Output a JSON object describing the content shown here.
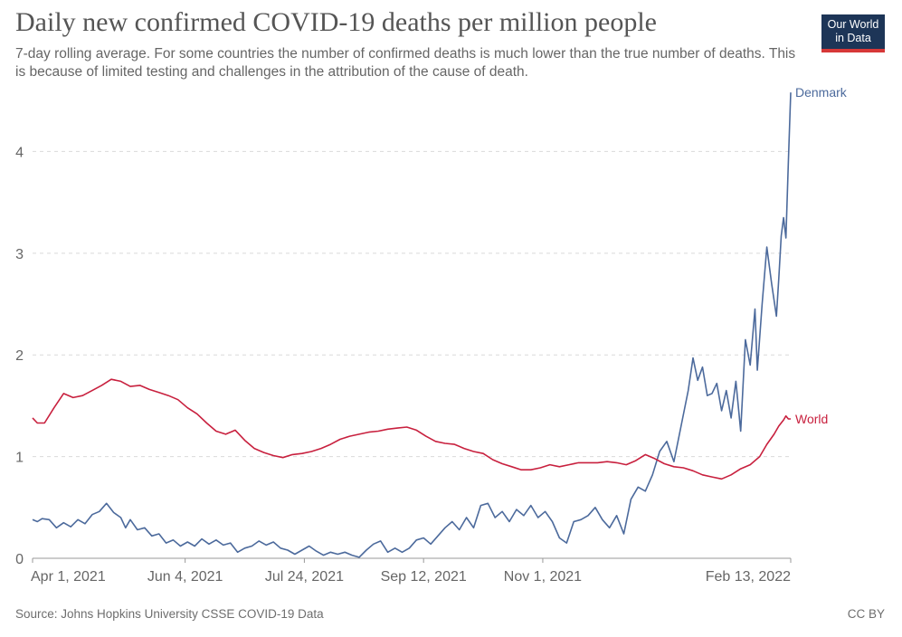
{
  "header": {
    "title": "Daily new confirmed COVID-19 deaths per million people",
    "subtitle": "7-day rolling average. For some countries the number of confirmed deaths is much lower than the true number of deaths. This is because of limited testing and challenges in the attribution of the cause of death.",
    "logo_line1": "Our World",
    "logo_line2": "in Data",
    "logo_bg": "#1d3557",
    "logo_accent": "#d73838"
  },
  "footer": {
    "source": "Source: Johns Hopkins University CSSE COVID-19 Data",
    "license": "CC BY"
  },
  "chart_data": {
    "type": "line",
    "title": "Daily new confirmed COVID-19 deaths per million people",
    "xlabel": "",
    "ylabel": "",
    "x_range": [
      "2021-04-01",
      "2022-02-13"
    ],
    "ylim": [
      0,
      4.6
    ],
    "y_ticks": [
      0,
      1,
      2,
      3,
      4
    ],
    "x_ticks": [
      {
        "date": "2021-04-01",
        "label": "Apr 1, 2021"
      },
      {
        "date": "2021-06-04",
        "label": "Jun 4, 2021"
      },
      {
        "date": "2021-07-24",
        "label": "Jul 24, 2021"
      },
      {
        "date": "2021-09-12",
        "label": "Sep 12, 2021"
      },
      {
        "date": "2021-11-01",
        "label": "Nov 1, 2021"
      },
      {
        "date": "2022-02-13",
        "label": "Feb 13, 2022"
      }
    ],
    "grid": "horizontal-dashed",
    "series": [
      {
        "name": "Denmark",
        "color": "#4c6a9c",
        "points": [
          [
            "2021-04-01",
            0.38
          ],
          [
            "2021-04-03",
            0.36
          ],
          [
            "2021-04-05",
            0.39
          ],
          [
            "2021-04-08",
            0.38
          ],
          [
            "2021-04-11",
            0.3
          ],
          [
            "2021-04-14",
            0.35
          ],
          [
            "2021-04-17",
            0.31
          ],
          [
            "2021-04-20",
            0.38
          ],
          [
            "2021-04-23",
            0.34
          ],
          [
            "2021-04-26",
            0.43
          ],
          [
            "2021-04-29",
            0.46
          ],
          [
            "2021-05-02",
            0.54
          ],
          [
            "2021-05-05",
            0.45
          ],
          [
            "2021-05-08",
            0.4
          ],
          [
            "2021-05-10",
            0.3
          ],
          [
            "2021-05-12",
            0.38
          ],
          [
            "2021-05-15",
            0.28
          ],
          [
            "2021-05-18",
            0.3
          ],
          [
            "2021-05-21",
            0.22
          ],
          [
            "2021-05-24",
            0.24
          ],
          [
            "2021-05-27",
            0.15
          ],
          [
            "2021-05-30",
            0.18
          ],
          [
            "2021-06-02",
            0.12
          ],
          [
            "2021-06-05",
            0.16
          ],
          [
            "2021-06-08",
            0.12
          ],
          [
            "2021-06-11",
            0.19
          ],
          [
            "2021-06-14",
            0.14
          ],
          [
            "2021-06-17",
            0.18
          ],
          [
            "2021-06-20",
            0.13
          ],
          [
            "2021-06-23",
            0.15
          ],
          [
            "2021-06-26",
            0.06
          ],
          [
            "2021-06-29",
            0.1
          ],
          [
            "2021-07-02",
            0.12
          ],
          [
            "2021-07-05",
            0.17
          ],
          [
            "2021-07-08",
            0.13
          ],
          [
            "2021-07-11",
            0.16
          ],
          [
            "2021-07-14",
            0.1
          ],
          [
            "2021-07-17",
            0.08
          ],
          [
            "2021-07-20",
            0.04
          ],
          [
            "2021-07-23",
            0.08
          ],
          [
            "2021-07-26",
            0.12
          ],
          [
            "2021-07-29",
            0.07
          ],
          [
            "2021-08-01",
            0.03
          ],
          [
            "2021-08-04",
            0.06
          ],
          [
            "2021-08-07",
            0.04
          ],
          [
            "2021-08-10",
            0.06
          ],
          [
            "2021-08-13",
            0.03
          ],
          [
            "2021-08-16",
            0.01
          ],
          [
            "2021-08-19",
            0.08
          ],
          [
            "2021-08-22",
            0.14
          ],
          [
            "2021-08-25",
            0.17
          ],
          [
            "2021-08-28",
            0.06
          ],
          [
            "2021-08-31",
            0.1
          ],
          [
            "2021-09-03",
            0.06
          ],
          [
            "2021-09-06",
            0.1
          ],
          [
            "2021-09-09",
            0.18
          ],
          [
            "2021-09-12",
            0.2
          ],
          [
            "2021-09-15",
            0.14
          ],
          [
            "2021-09-18",
            0.22
          ],
          [
            "2021-09-21",
            0.3
          ],
          [
            "2021-09-24",
            0.36
          ],
          [
            "2021-09-27",
            0.28
          ],
          [
            "2021-09-30",
            0.4
          ],
          [
            "2021-10-03",
            0.3
          ],
          [
            "2021-10-06",
            0.52
          ],
          [
            "2021-10-09",
            0.54
          ],
          [
            "2021-10-12",
            0.4
          ],
          [
            "2021-10-15",
            0.46
          ],
          [
            "2021-10-18",
            0.36
          ],
          [
            "2021-10-21",
            0.48
          ],
          [
            "2021-10-24",
            0.42
          ],
          [
            "2021-10-27",
            0.52
          ],
          [
            "2021-10-30",
            0.4
          ],
          [
            "2021-11-02",
            0.46
          ],
          [
            "2021-11-05",
            0.36
          ],
          [
            "2021-11-08",
            0.2
          ],
          [
            "2021-11-11",
            0.15
          ],
          [
            "2021-11-14",
            0.36
          ],
          [
            "2021-11-17",
            0.38
          ],
          [
            "2021-11-20",
            0.42
          ],
          [
            "2021-11-23",
            0.5
          ],
          [
            "2021-11-26",
            0.38
          ],
          [
            "2021-11-29",
            0.3
          ],
          [
            "2021-12-02",
            0.42
          ],
          [
            "2021-12-05",
            0.24
          ],
          [
            "2021-12-08",
            0.58
          ],
          [
            "2021-12-11",
            0.7
          ],
          [
            "2021-12-14",
            0.66
          ],
          [
            "2021-12-17",
            0.82
          ],
          [
            "2021-12-20",
            1.05
          ],
          [
            "2021-12-23",
            1.15
          ],
          [
            "2021-12-26",
            0.95
          ],
          [
            "2021-12-29",
            1.3
          ],
          [
            "2022-01-01",
            1.65
          ],
          [
            "2022-01-03",
            1.97
          ],
          [
            "2022-01-05",
            1.75
          ],
          [
            "2022-01-07",
            1.88
          ],
          [
            "2022-01-09",
            1.6
          ],
          [
            "2022-01-11",
            1.62
          ],
          [
            "2022-01-13",
            1.72
          ],
          [
            "2022-01-15",
            1.45
          ],
          [
            "2022-01-17",
            1.65
          ],
          [
            "2022-01-19",
            1.38
          ],
          [
            "2022-01-21",
            1.74
          ],
          [
            "2022-01-23",
            1.25
          ],
          [
            "2022-01-25",
            2.15
          ],
          [
            "2022-01-27",
            1.9
          ],
          [
            "2022-01-29",
            2.45
          ],
          [
            "2022-01-30",
            1.85
          ],
          [
            "2022-02-01",
            2.5
          ],
          [
            "2022-02-03",
            3.06
          ],
          [
            "2022-02-05",
            2.7
          ],
          [
            "2022-02-07",
            2.38
          ],
          [
            "2022-02-08",
            2.75
          ],
          [
            "2022-02-09",
            3.17
          ],
          [
            "2022-02-10",
            3.35
          ],
          [
            "2022-02-11",
            3.15
          ],
          [
            "2022-02-12",
            3.9
          ],
          [
            "2022-02-13",
            4.58
          ]
        ]
      },
      {
        "name": "World",
        "color": "#c8203e",
        "points": [
          [
            "2021-04-01",
            1.38
          ],
          [
            "2021-04-03",
            1.33
          ],
          [
            "2021-04-06",
            1.33
          ],
          [
            "2021-04-10",
            1.48
          ],
          [
            "2021-04-14",
            1.62
          ],
          [
            "2021-04-18",
            1.58
          ],
          [
            "2021-04-22",
            1.6
          ],
          [
            "2021-04-26",
            1.65
          ],
          [
            "2021-04-30",
            1.7
          ],
          [
            "2021-05-04",
            1.76
          ],
          [
            "2021-05-08",
            1.74
          ],
          [
            "2021-05-12",
            1.69
          ],
          [
            "2021-05-16",
            1.7
          ],
          [
            "2021-05-20",
            1.66
          ],
          [
            "2021-05-24",
            1.63
          ],
          [
            "2021-05-28",
            1.6
          ],
          [
            "2021-06-01",
            1.56
          ],
          [
            "2021-06-05",
            1.48
          ],
          [
            "2021-06-09",
            1.42
          ],
          [
            "2021-06-13",
            1.33
          ],
          [
            "2021-06-17",
            1.25
          ],
          [
            "2021-06-21",
            1.22
          ],
          [
            "2021-06-25",
            1.26
          ],
          [
            "2021-06-29",
            1.16
          ],
          [
            "2021-07-03",
            1.08
          ],
          [
            "2021-07-07",
            1.04
          ],
          [
            "2021-07-11",
            1.01
          ],
          [
            "2021-07-15",
            0.99
          ],
          [
            "2021-07-19",
            1.02
          ],
          [
            "2021-07-23",
            1.03
          ],
          [
            "2021-07-27",
            1.05
          ],
          [
            "2021-07-31",
            1.08
          ],
          [
            "2021-08-04",
            1.12
          ],
          [
            "2021-08-08",
            1.17
          ],
          [
            "2021-08-12",
            1.2
          ],
          [
            "2021-08-16",
            1.22
          ],
          [
            "2021-08-20",
            1.24
          ],
          [
            "2021-08-24",
            1.25
          ],
          [
            "2021-08-28",
            1.27
          ],
          [
            "2021-09-01",
            1.28
          ],
          [
            "2021-09-05",
            1.29
          ],
          [
            "2021-09-09",
            1.26
          ],
          [
            "2021-09-13",
            1.2
          ],
          [
            "2021-09-17",
            1.15
          ],
          [
            "2021-09-21",
            1.13
          ],
          [
            "2021-09-25",
            1.12
          ],
          [
            "2021-09-29",
            1.08
          ],
          [
            "2021-10-03",
            1.05
          ],
          [
            "2021-10-07",
            1.03
          ],
          [
            "2021-10-11",
            0.97
          ],
          [
            "2021-10-15",
            0.93
          ],
          [
            "2021-10-19",
            0.9
          ],
          [
            "2021-10-23",
            0.87
          ],
          [
            "2021-10-27",
            0.87
          ],
          [
            "2021-10-31",
            0.89
          ],
          [
            "2021-11-04",
            0.92
          ],
          [
            "2021-11-08",
            0.9
          ],
          [
            "2021-11-12",
            0.92
          ],
          [
            "2021-11-16",
            0.94
          ],
          [
            "2021-11-20",
            0.94
          ],
          [
            "2021-11-24",
            0.94
          ],
          [
            "2021-11-28",
            0.95
          ],
          [
            "2021-12-02",
            0.94
          ],
          [
            "2021-12-06",
            0.92
          ],
          [
            "2021-12-10",
            0.96
          ],
          [
            "2021-12-14",
            1.02
          ],
          [
            "2021-12-18",
            0.98
          ],
          [
            "2021-12-22",
            0.93
          ],
          [
            "2021-12-26",
            0.9
          ],
          [
            "2021-12-30",
            0.89
          ],
          [
            "2022-01-03",
            0.86
          ],
          [
            "2022-01-07",
            0.82
          ],
          [
            "2022-01-11",
            0.8
          ],
          [
            "2022-01-15",
            0.78
          ],
          [
            "2022-01-19",
            0.82
          ],
          [
            "2022-01-23",
            0.88
          ],
          [
            "2022-01-27",
            0.92
          ],
          [
            "2022-01-31",
            1.0
          ],
          [
            "2022-02-03",
            1.12
          ],
          [
            "2022-02-06",
            1.22
          ],
          [
            "2022-02-08",
            1.3
          ],
          [
            "2022-02-10",
            1.36
          ],
          [
            "2022-02-11",
            1.4
          ],
          [
            "2022-02-12",
            1.37
          ],
          [
            "2022-02-13",
            1.37
          ]
        ]
      }
    ]
  }
}
